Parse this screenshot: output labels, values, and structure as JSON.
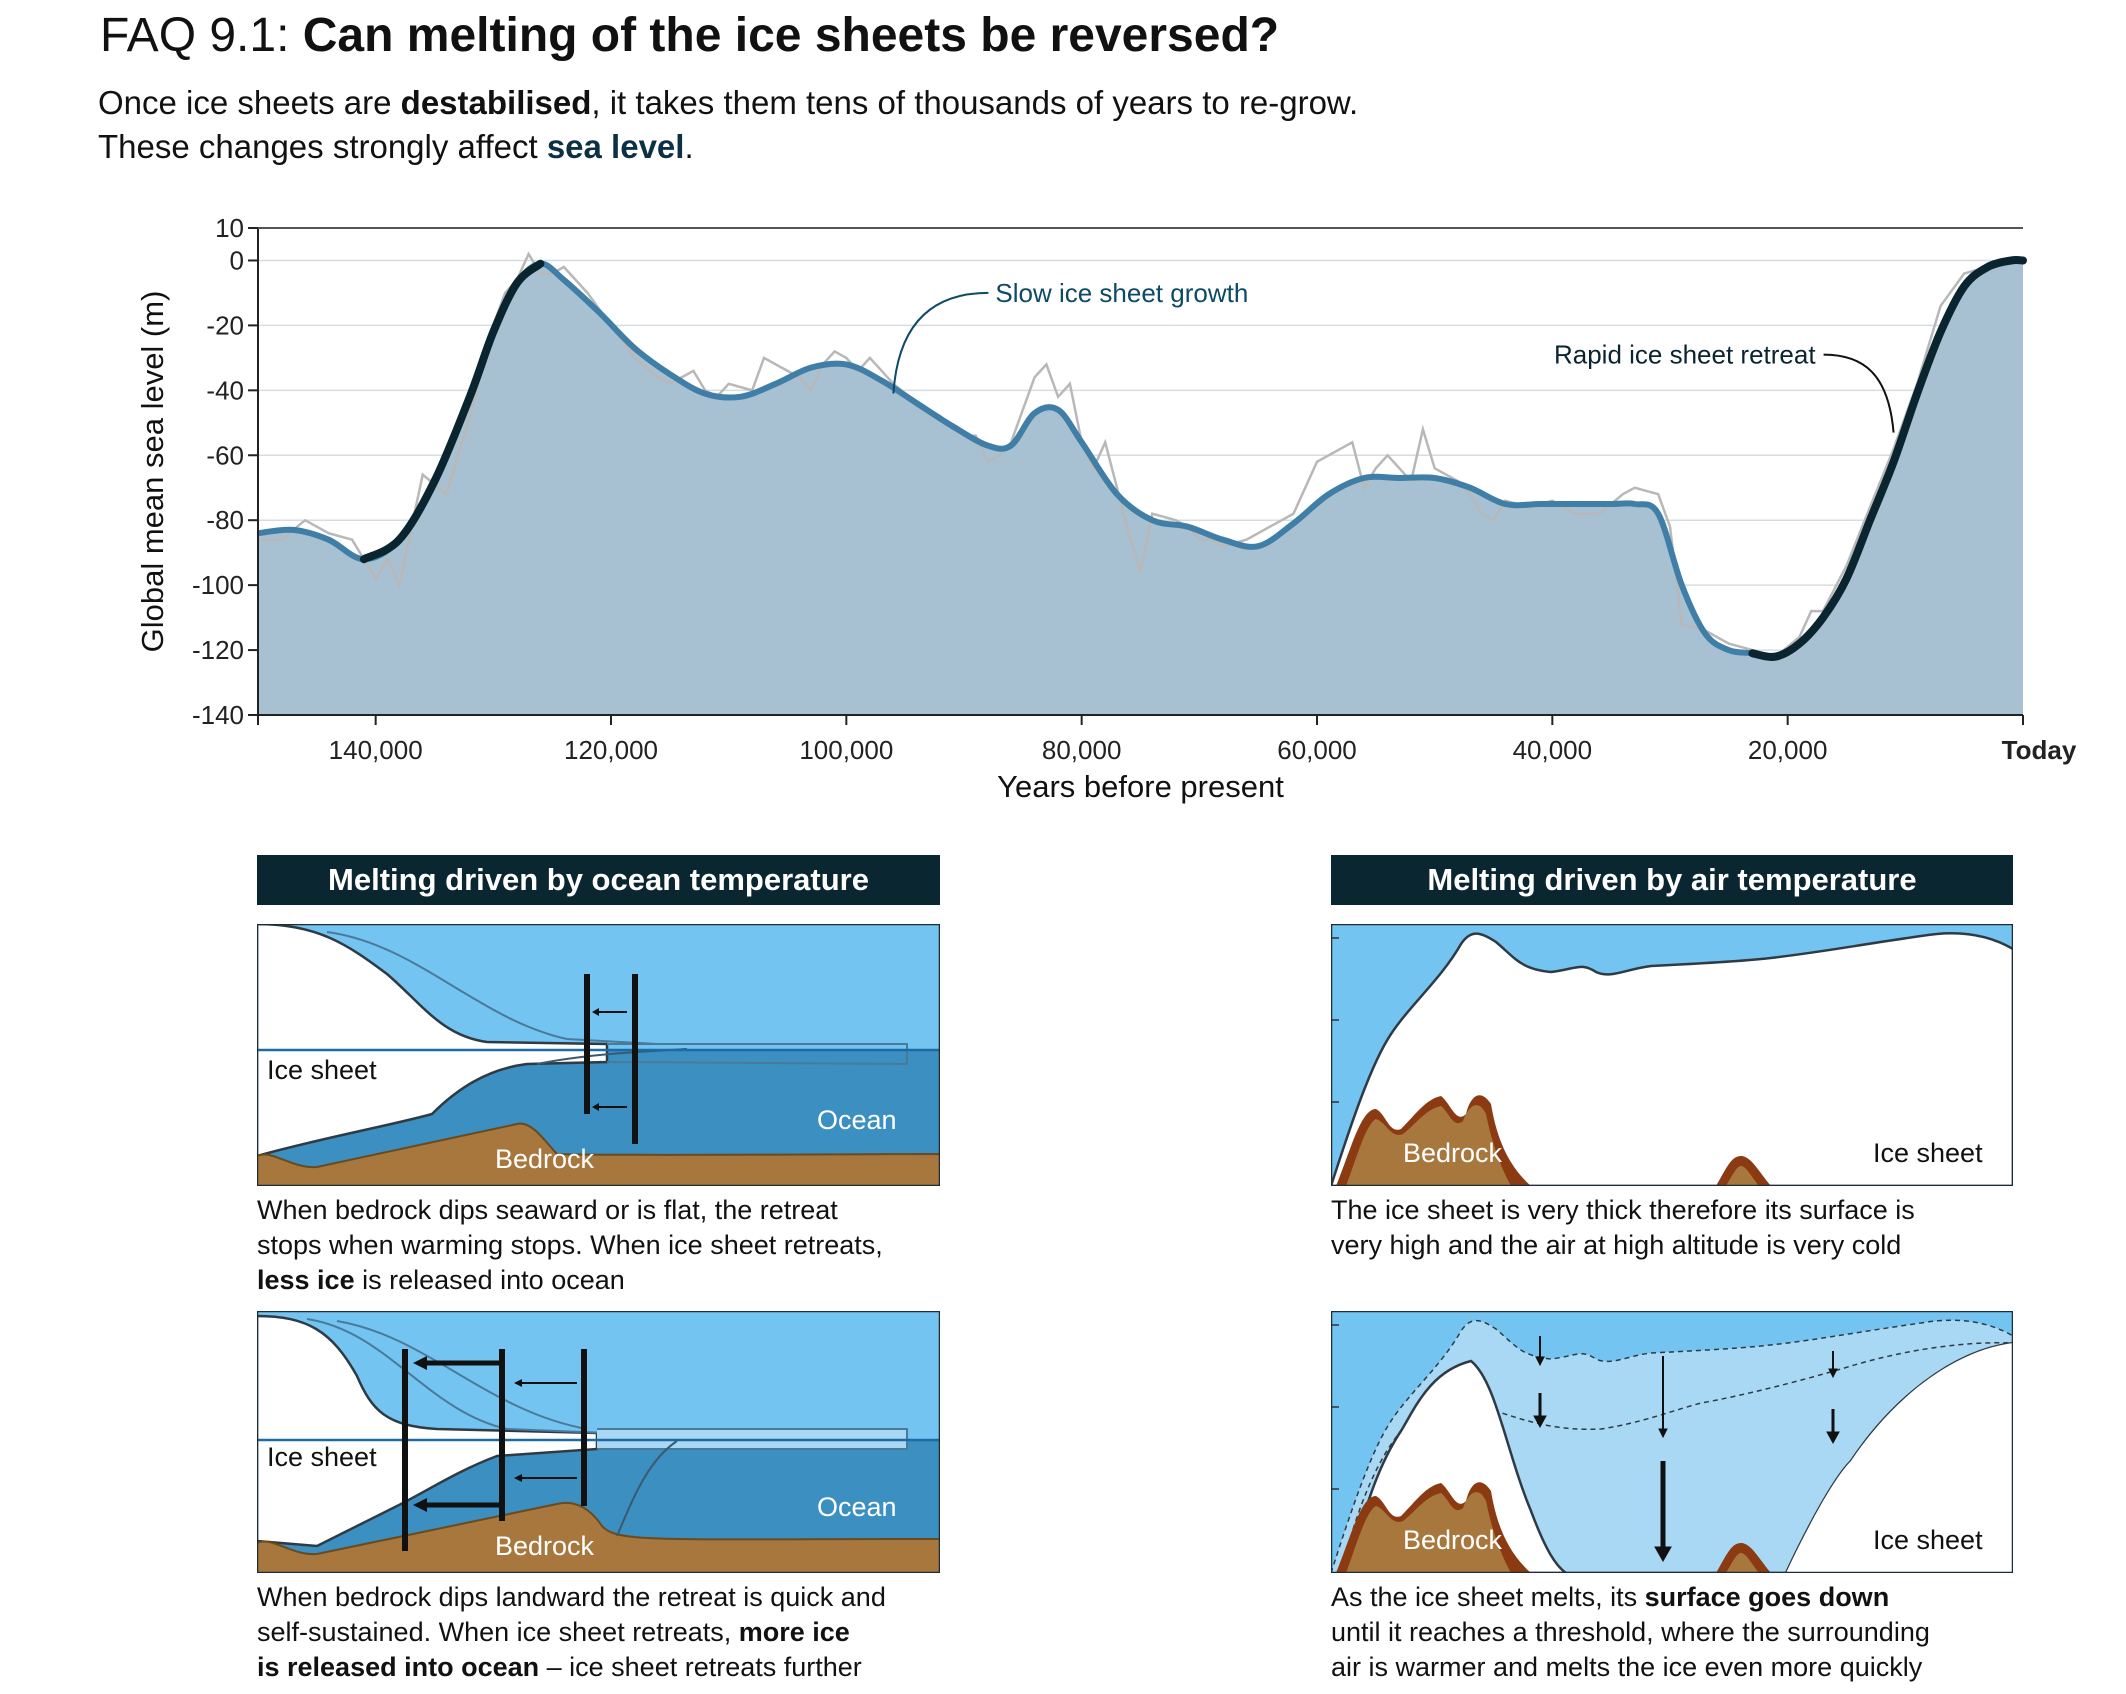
{
  "header": {
    "faq_id": "FAQ 9.1:",
    "question": "Can melting of the ice sheets be reversed?",
    "sub1_a": "Once ice sheets are ",
    "sub1_b": "destabilised",
    "sub1_c": ", it takes them tens of thousands of years to re-grow.",
    "sub2_a": "These changes strongly affect ",
    "sub2_b": "sea level",
    "sub2_c": "."
  },
  "chart_data": {
    "type": "line",
    "xlabel": "Years before present",
    "ylabel": "Global mean sea level (m)",
    "xlim": [
      150000,
      0
    ],
    "ylim": [
      -140,
      10
    ],
    "x_ticks": [
      {
        "value": 140000,
        "label": "140,000"
      },
      {
        "value": 120000,
        "label": "120,000"
      },
      {
        "value": 100000,
        "label": "100,000"
      },
      {
        "value": 80000,
        "label": "80,000"
      },
      {
        "value": 60000,
        "label": "60,000"
      },
      {
        "value": 40000,
        "label": "40,000"
      },
      {
        "value": 20000,
        "label": "20,000"
      },
      {
        "value": 0,
        "label": "Today"
      }
    ],
    "y_ticks": [
      10,
      0,
      -20,
      -40,
      -60,
      -80,
      -100,
      -120,
      -140
    ],
    "grid": true,
    "smooth_series": {
      "x": [
        150000,
        147000,
        144000,
        141000,
        138000,
        135000,
        132000,
        130000,
        128000,
        126000,
        124000,
        121000,
        118000,
        115000,
        112000,
        109000,
        106000,
        103000,
        100000,
        97000,
        94000,
        91000,
        88000,
        86000,
        84000,
        82000,
        80000,
        77000,
        74000,
        71000,
        68000,
        65000,
        62000,
        59000,
        56000,
        53000,
        50000,
        47000,
        44000,
        41000,
        38000,
        35000,
        33000,
        31000,
        29000,
        27000,
        25000,
        23000,
        21000,
        19000,
        17000,
        15000,
        13000,
        11000,
        9000,
        7000,
        5000,
        3000,
        1000,
        0
      ],
      "y": [
        -84,
        -83,
        -86,
        -92,
        -86,
        -68,
        -42,
        -22,
        -7,
        -1,
        -6,
        -16,
        -27,
        -35,
        -41,
        -42,
        -38,
        -33,
        -32,
        -37,
        -44,
        -51,
        -57,
        -57,
        -47,
        -46,
        -56,
        -72,
        -80,
        -82,
        -86,
        -88,
        -81,
        -72,
        -67,
        -67,
        -67,
        -70,
        -75,
        -75,
        -75,
        -75,
        -75,
        -78,
        -100,
        -115,
        -120,
        -121,
        -122,
        -118,
        -110,
        -98,
        -80,
        -62,
        -41,
        -22,
        -8,
        -2,
        0,
        0
      ]
    },
    "raw_series": {
      "x": [
        150000,
        148000,
        146000,
        144000,
        142000,
        140000,
        139000,
        138000,
        136000,
        134000,
        133000,
        132000,
        130000,
        129000,
        128000,
        127000,
        126000,
        125000,
        124000,
        122000,
        120000,
        118000,
        116000,
        115000,
        113000,
        112000,
        111000,
        110000,
        108000,
        107000,
        105000,
        104000,
        103000,
        102000,
        101000,
        100000,
        99000,
        98000,
        96000,
        94000,
        92000,
        90000,
        89000,
        88000,
        87000,
        86000,
        85000,
        84000,
        83000,
        82000,
        81000,
        80000,
        79000,
        78000,
        77000,
        76000,
        75000,
        74000,
        72000,
        71000,
        70000,
        69000,
        68000,
        66000,
        64000,
        62000,
        60000,
        58000,
        57000,
        56000,
        55000,
        54000,
        53000,
        52000,
        51000,
        50000,
        48000,
        47000,
        46000,
        45000,
        44000,
        42000,
        40000,
        38000,
        36000,
        34000,
        33000,
        31000,
        30000,
        29000,
        27000,
        25000,
        23000,
        21000,
        19000,
        18000,
        17000,
        15000,
        13000,
        11000,
        9000,
        7000,
        5000,
        3000,
        1000,
        0
      ],
      "y": [
        -86,
        -86,
        -80,
        -84,
        -86,
        -98,
        -92,
        -100,
        -66,
        -72,
        -60,
        -48,
        -20,
        -10,
        -6,
        2,
        -4,
        -4,
        -2,
        -10,
        -20,
        -30,
        -36,
        -38,
        -34,
        -40,
        -42,
        -38,
        -40,
        -30,
        -34,
        -36,
        -40,
        -32,
        -28,
        -30,
        -34,
        -30,
        -38,
        -44,
        -48,
        -54,
        -54,
        -62,
        -60,
        -56,
        -46,
        -36,
        -32,
        -42,
        -38,
        -56,
        -64,
        -56,
        -70,
        -84,
        -96,
        -78,
        -80,
        -82,
        -86,
        -86,
        -88,
        -86,
        -82,
        -78,
        -62,
        -58,
        -56,
        -70,
        -64,
        -60,
        -64,
        -68,
        -52,
        -64,
        -68,
        -72,
        -78,
        -80,
        -74,
        -76,
        -74,
        -78,
        -78,
        -72,
        -70,
        -72,
        -82,
        -112,
        -114,
        -118,
        -120,
        -122,
        -116,
        -108,
        -108,
        -94,
        -76,
        -58,
        -38,
        -14,
        -4,
        -2,
        0,
        0
      ]
    },
    "annotations": {
      "slow": {
        "text": "Slow ice sheet growth",
        "x": 96000,
        "y": -41
      },
      "rapid": {
        "text": "Rapid ice sheet retreat",
        "x": 11000,
        "y": -53
      }
    }
  },
  "panels": {
    "ocean_header": "Melting driven by ocean temperature",
    "air_header": "Melting driven by air temperature",
    "ice_sheet_label": "Ice sheet",
    "ocean_label": "Ocean",
    "bedrock_label": "Bedrock",
    "ocean_top_caption": {
      "l1": "When bedrock dips seaward or is flat, the retreat",
      "l2": "stops when warming stops. When ice sheet retreats,",
      "l3_bold": "less ice",
      "l3_rest": " is released into ocean"
    },
    "ocean_bottom_caption": {
      "l1": "When bedrock dips landward the retreat is quick and",
      "l2_a": "self-sustained.  When ice sheet retreats, ",
      "l2_b": "more ice",
      "l3_b": "is released into ocean",
      "l3_rest": " – ice sheet retreats further"
    },
    "air_top_caption": {
      "l1": "The ice sheet is very thick therefore its surface is",
      "l2": "very high and the air at high altitude is very cold"
    },
    "air_bottom_caption": {
      "l1_a": "As the ice sheet melts, its ",
      "l1_b": "surface goes down",
      "l2": "until it reaches a threshold, where the surrounding",
      "l3": "air is warmer and melts the ice even more quickly"
    }
  },
  "colors": {
    "fill": "#a7c0d2",
    "smooth_line": "#3f7ea6",
    "rapid_line": "#0b2530",
    "raw_line": "#b8b8b8",
    "sky": "#74c4f2",
    "ocean": "#3b8fc1",
    "bedrock": "#a8773e",
    "header_bg": "#0a2630"
  }
}
